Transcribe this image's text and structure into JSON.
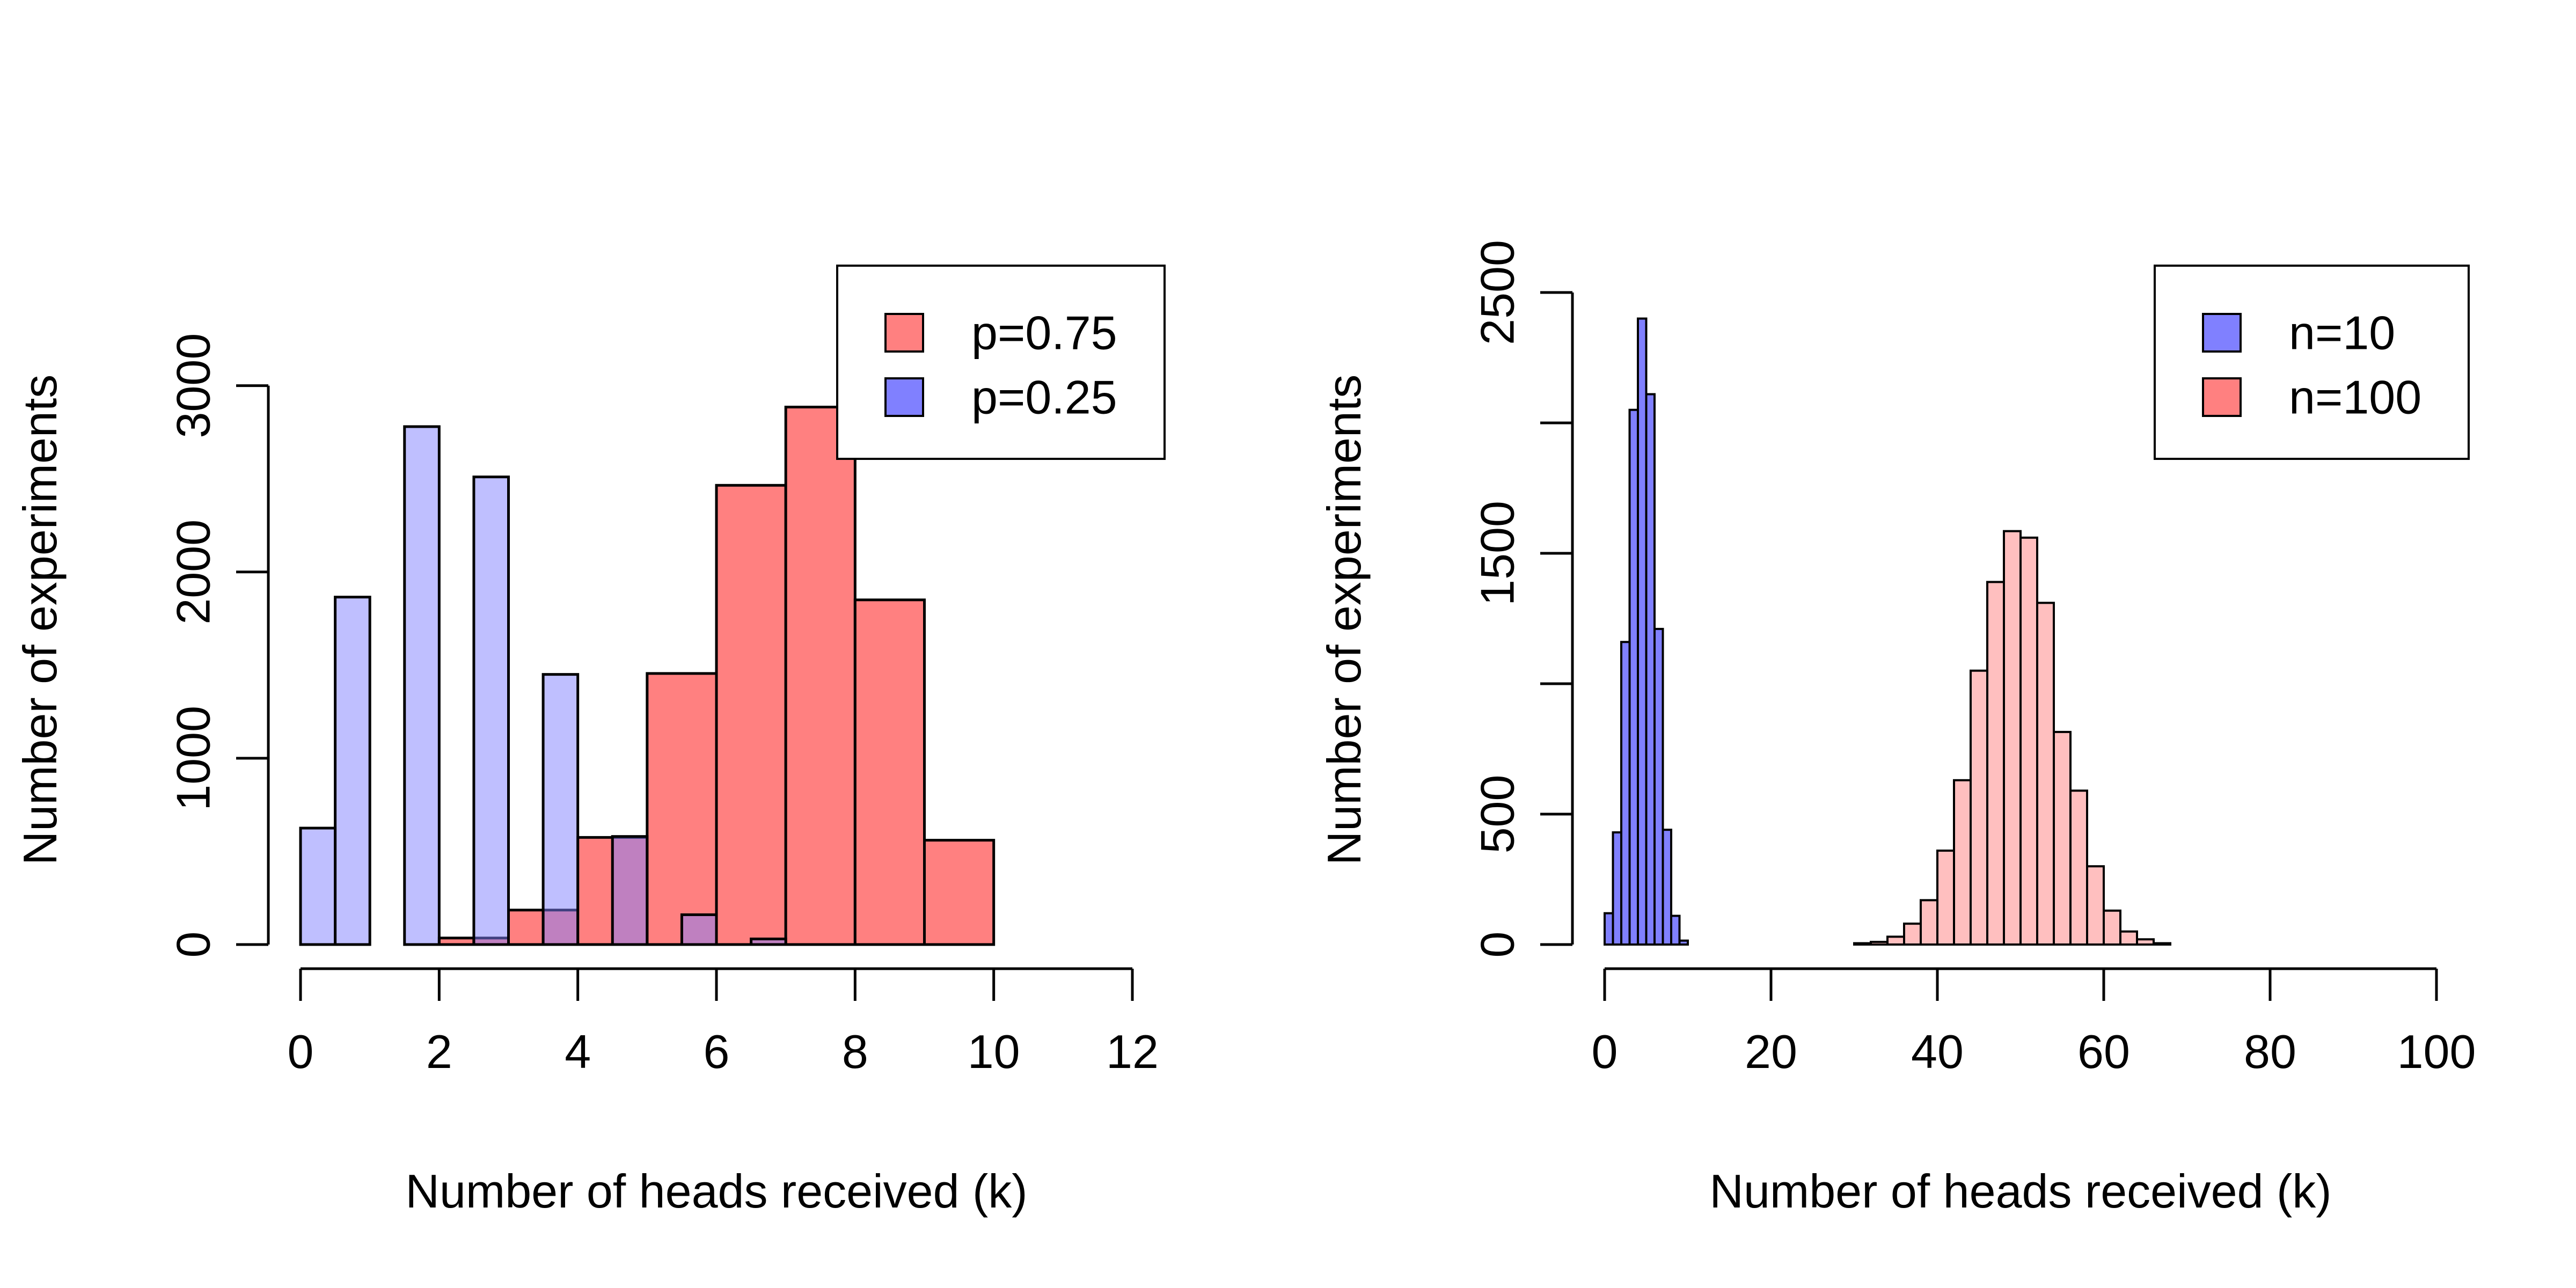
{
  "chart_data": [
    {
      "type": "bar",
      "xlabel": "Number of heads received (k)",
      "ylabel": "Number of experiments",
      "xlim": [
        0,
        12
      ],
      "ylim": [
        0,
        3500
      ],
      "x_ticks": [
        0,
        2,
        4,
        6,
        8,
        10,
        12
      ],
      "y_ticks": [
        0,
        1000,
        2000,
        3000
      ],
      "grid": false,
      "legend_position": "top-right",
      "series": [
        {
          "name": "p=0.75",
          "color": "#ff8080",
          "bins": [
            {
              "x0": 2,
              "x1": 2.5,
              "value": 35
            },
            {
              "x0": 2.5,
              "x1": 3,
              "value": 35
            },
            {
              "x0": 3,
              "x1": 3.5,
              "value": 185
            },
            {
              "x0": 3.5,
              "x1": 4,
              "value": 185
            },
            {
              "x0": 4,
              "x1": 5,
              "value": 575
            },
            {
              "x0": 5,
              "x1": 6,
              "value": 1455
            },
            {
              "x0": 6,
              "x1": 7,
              "value": 2465
            },
            {
              "x0": 7,
              "x1": 8,
              "value": 2885
            },
            {
              "x0": 8,
              "x1": 9,
              "value": 1850
            },
            {
              "x0": 9,
              "x1": 10,
              "value": 560
            }
          ]
        },
        {
          "name": "p=0.25",
          "color": "#8080ff",
          "bins": [
            {
              "x0": 0,
              "x1": 0.5,
              "value": 625
            },
            {
              "x0": 0.5,
              "x1": 1,
              "value": 1865
            },
            {
              "x0": 1.5,
              "x1": 2,
              "value": 2780
            },
            {
              "x0": 2.5,
              "x1": 3,
              "value": 2510
            },
            {
              "x0": 3.5,
              "x1": 4,
              "value": 1450
            },
            {
              "x0": 4.5,
              "x1": 5,
              "value": 580
            },
            {
              "x0": 5.5,
              "x1": 6,
              "value": 160
            },
            {
              "x0": 6.5,
              "x1": 7,
              "value": 30
            }
          ]
        }
      ]
    },
    {
      "type": "bar",
      "xlabel": "Number of heads received (k)",
      "ylabel": "Number of experiments",
      "xlim": [
        0,
        100
      ],
      "ylim": [
        0,
        2500
      ],
      "x_ticks": [
        0,
        20,
        40,
        60,
        80,
        100
      ],
      "y_ticks": [
        0,
        500,
        1000,
        1500,
        2000,
        2500
      ],
      "y_tick_labels_shown": [
        0,
        500,
        1500,
        2500
      ],
      "grid": false,
      "legend_position": "top-right",
      "series": [
        {
          "name": "n=10",
          "color": "#8080ff",
          "bin_width": 1,
          "x_start": 0,
          "values": [
            120,
            430,
            1160,
            2050,
            2400,
            2110,
            1210,
            440,
            110,
            15
          ]
        },
        {
          "name": "n=100",
          "color": "#ff8080",
          "bin_width": 2,
          "x_start": 30,
          "values": [
            5,
            10,
            30,
            80,
            170,
            360,
            630,
            1050,
            1390,
            1585,
            1560,
            1310,
            815,
            590,
            300,
            130,
            50,
            20,
            5
          ]
        }
      ]
    }
  ]
}
